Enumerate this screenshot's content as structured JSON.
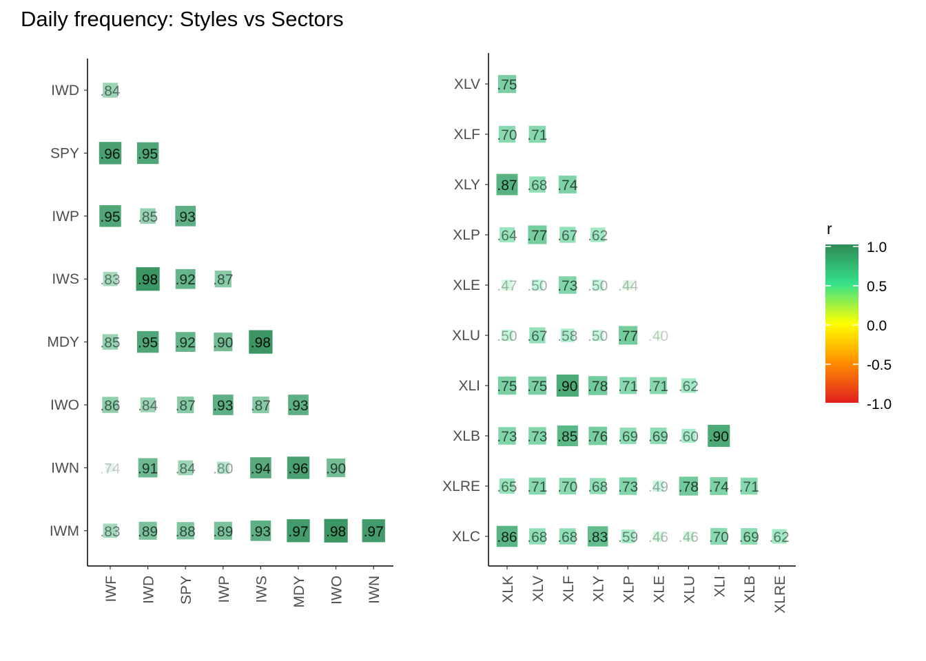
{
  "title": "Daily frequency: Styles vs Sectors",
  "legend": {
    "title": "r",
    "ticks": [
      "1.0",
      "0.5",
      "0.0",
      "-0.5",
      "-1.0"
    ],
    "tick_values": [
      1.0,
      0.5,
      0.0,
      -0.5,
      -1.0
    ],
    "colors": [
      "#2e8b57",
      "#36e28a",
      "#ffff00",
      "#ff8c00",
      "#e02020"
    ],
    "placement": "right"
  },
  "chart_data": [
    {
      "type": "heatmap",
      "title": "",
      "x_categories": [
        "IWF",
        "IWD",
        "SPY",
        "IWP",
        "IWS",
        "MDY",
        "IWO",
        "IWN"
      ],
      "y_categories": [
        "IWD",
        "SPY",
        "IWP",
        "IWS",
        "MDY",
        "IWO",
        "IWN",
        "IWM"
      ],
      "values": [
        [
          0.84,
          null,
          null,
          null,
          null,
          null,
          null,
          null
        ],
        [
          0.96,
          0.95,
          null,
          null,
          null,
          null,
          null,
          null
        ],
        [
          0.95,
          0.85,
          0.93,
          null,
          null,
          null,
          null,
          null
        ],
        [
          0.83,
          0.98,
          0.92,
          0.87,
          null,
          null,
          null,
          null
        ],
        [
          0.85,
          0.95,
          0.92,
          0.9,
          0.98,
          null,
          null,
          null
        ],
        [
          0.86,
          0.84,
          0.87,
          0.93,
          0.87,
          0.93,
          null,
          null
        ],
        [
          0.74,
          0.91,
          0.84,
          0.8,
          0.94,
          0.96,
          0.9,
          null
        ],
        [
          0.83,
          0.89,
          0.88,
          0.89,
          0.93,
          0.97,
          0.98,
          0.97
        ]
      ],
      "labels": [
        [
          ".84",
          null,
          null,
          null,
          null,
          null,
          null,
          null
        ],
        [
          ".96",
          ".95",
          null,
          null,
          null,
          null,
          null,
          null
        ],
        [
          ".95",
          ".85",
          ".93",
          null,
          null,
          null,
          null,
          null
        ],
        [
          ".83",
          ".98",
          ".92",
          ".87",
          null,
          null,
          null,
          null
        ],
        [
          ".85",
          ".95",
          ".92",
          ".90",
          ".98",
          null,
          null,
          null
        ],
        [
          ".86",
          ".84",
          ".87",
          ".93",
          ".87",
          ".93",
          null,
          null
        ],
        [
          ".74",
          ".91",
          ".84",
          ".80",
          ".94",
          ".96",
          ".90",
          null
        ],
        [
          ".83",
          ".89",
          ".88",
          ".89",
          ".93",
          ".97",
          ".98",
          ".97"
        ]
      ],
      "min_value": 0.74,
      "xlabel": "",
      "ylabel": ""
    },
    {
      "type": "heatmap",
      "title": "",
      "x_categories": [
        "XLK",
        "XLV",
        "XLF",
        "XLY",
        "XLP",
        "XLE",
        "XLU",
        "XLI",
        "XLB",
        "XLRE"
      ],
      "y_categories": [
        "XLV",
        "XLF",
        "XLY",
        "XLP",
        "XLE",
        "XLU",
        "XLI",
        "XLB",
        "XLRE",
        "XLC"
      ],
      "values": [
        [
          0.75,
          null,
          null,
          null,
          null,
          null,
          null,
          null,
          null,
          null
        ],
        [
          0.7,
          0.71,
          null,
          null,
          null,
          null,
          null,
          null,
          null,
          null
        ],
        [
          0.87,
          0.68,
          0.74,
          null,
          null,
          null,
          null,
          null,
          null,
          null
        ],
        [
          0.64,
          0.77,
          0.67,
          0.62,
          null,
          null,
          null,
          null,
          null,
          null
        ],
        [
          0.47,
          0.5,
          0.73,
          0.5,
          0.44,
          null,
          null,
          null,
          null,
          null
        ],
        [
          0.5,
          0.67,
          0.58,
          0.5,
          0.77,
          0.4,
          null,
          null,
          null,
          null
        ],
        [
          0.75,
          0.75,
          0.9,
          0.78,
          0.71,
          0.71,
          0.62,
          null,
          null,
          null
        ],
        [
          0.73,
          0.73,
          0.85,
          0.76,
          0.69,
          0.69,
          0.6,
          0.9,
          null,
          null
        ],
        [
          0.65,
          0.71,
          0.7,
          0.68,
          0.73,
          0.49,
          0.78,
          0.74,
          0.71,
          null
        ],
        [
          0.86,
          0.68,
          0.68,
          0.83,
          0.59,
          0.46,
          0.46,
          0.7,
          0.69,
          0.62
        ]
      ],
      "labels": [
        [
          ".75",
          null,
          null,
          null,
          null,
          null,
          null,
          null,
          null,
          null
        ],
        [
          ".70",
          ".71",
          null,
          null,
          null,
          null,
          null,
          null,
          null,
          null
        ],
        [
          ".87",
          ".68",
          ".74",
          null,
          null,
          null,
          null,
          null,
          null,
          null
        ],
        [
          ".64",
          ".77",
          ".67",
          ".62",
          null,
          null,
          null,
          null,
          null,
          null
        ],
        [
          ".47",
          ".50",
          ".73",
          ".50",
          ".44",
          null,
          null,
          null,
          null,
          null
        ],
        [
          ".50",
          ".67",
          ".58",
          ".50",
          ".77",
          ".40",
          null,
          null,
          null,
          null
        ],
        [
          ".75",
          ".75",
          ".90",
          ".78",
          ".71",
          ".71",
          ".62",
          null,
          null,
          null
        ],
        [
          ".73",
          ".73",
          ".85",
          ".76",
          ".69",
          ".69",
          ".60",
          ".90",
          null,
          null
        ],
        [
          ".65",
          ".71",
          ".70",
          ".68",
          ".73",
          ".49",
          ".78",
          ".74",
          ".71",
          null
        ],
        [
          ".86",
          ".68",
          ".68",
          ".83",
          ".59",
          ".46",
          ".46",
          ".70",
          ".69",
          ".62"
        ]
      ],
      "min_value": 0.4,
      "xlabel": "",
      "ylabel": ""
    }
  ]
}
